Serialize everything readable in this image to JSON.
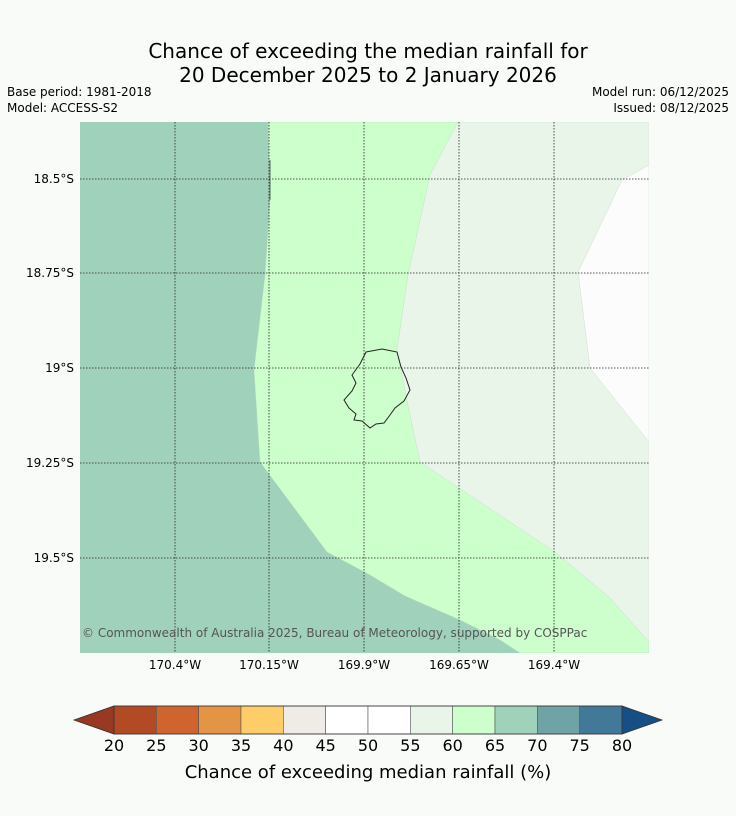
{
  "title": {
    "line1": "Chance of exceeding the median rainfall for",
    "line2": "20 December 2025 to 2 January 2026"
  },
  "meta": {
    "base_period": "Base period: 1981-2018",
    "model": "Model: ACCESS-S2",
    "model_run": "Model run: 06/12/2025",
    "issued": "Issued: 08/12/2025"
  },
  "map": {
    "lat_labels": [
      "18.5°S",
      "18.75°S",
      "19°S",
      "19.25°S",
      "19.5°S"
    ],
    "lon_labels": [
      "170.4°W",
      "170.15°W",
      "169.9°W",
      "169.65°W",
      "169.4°W"
    ],
    "copyright": "© Commonwealth of Australia 2025, Bureau of Meteorology, supported by COSPPac",
    "zone_colors": {
      "c65_70": "#9fd1bb",
      "c60_65": "#ccffcc",
      "c55_60": "#eaf5ea",
      "c50_55": "#fbfcfb"
    }
  },
  "colorbar": {
    "title": "Chance of exceeding median rainfall (%)",
    "labels": [
      "20",
      "25",
      "30",
      "35",
      "40",
      "45",
      "50",
      "55",
      "60",
      "65",
      "70",
      "75",
      "80"
    ],
    "colors": [
      "#b34a26",
      "#d0642f",
      "#e39545",
      "#fecd69",
      "#efebe7",
      "#ffffff",
      "#ffffff",
      "#eaf5ea",
      "#ccffcc",
      "#9fd1bb",
      "#70a3a6",
      "#427999"
    ],
    "under_color": "#993823",
    "over_color": "#174e85"
  }
}
